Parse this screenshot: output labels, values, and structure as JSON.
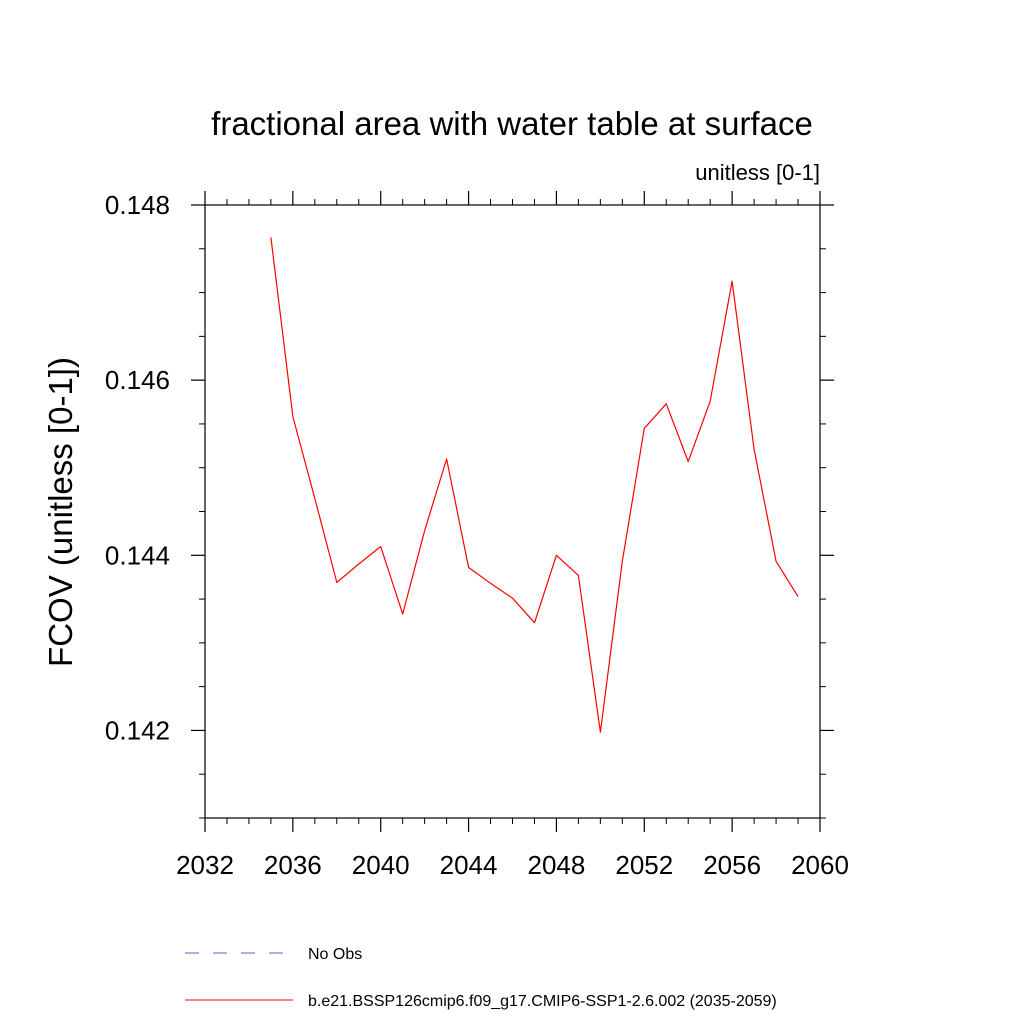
{
  "chart_data": {
    "type": "line",
    "title": "fractional area with water table at surface",
    "units_label": "unitless [0-1]",
    "ylabel": "FCOV  (unitless [0-1])",
    "xlabel": "",
    "xlim": [
      2032,
      2060
    ],
    "ylim": [
      0.141,
      0.148
    ],
    "x_ticks": [
      2032,
      2036,
      2040,
      2044,
      2048,
      2052,
      2056,
      2060
    ],
    "x_tick_labels": [
      "2032",
      "2036",
      "2040",
      "2044",
      "2048",
      "2052",
      "2056",
      "2060"
    ],
    "y_ticks": [
      0.142,
      0.144,
      0.146,
      0.148
    ],
    "y_tick_labels": [
      "0.142",
      "0.144",
      "0.146",
      "0.148"
    ],
    "y_minor_step": 0.0005,
    "x_minor_step": 1,
    "grid": false,
    "legend_position": "bottom",
    "series": [
      {
        "name": "b.e21.BSSP126cmip6.f09_g17.CMIP6-SSP1-2.6.002 (2035-2059)",
        "color": "#ff0000",
        "style": "solid",
        "x": [
          2035,
          2036,
          2037,
          2038,
          2039,
          2040,
          2041,
          2042,
          2043,
          2044,
          2045,
          2046,
          2047,
          2048,
          2049,
          2050,
          2051,
          2052,
          2053,
          2054,
          2055,
          2056,
          2057,
          2058,
          2059
        ],
        "y": [
          0.14763,
          0.14558,
          0.14465,
          0.14369,
          0.1439,
          0.1441,
          0.14333,
          0.14428,
          0.1451,
          0.14386,
          0.14368,
          0.14351,
          0.14323,
          0.144,
          0.14377,
          0.14198,
          0.14393,
          0.14545,
          0.14573,
          0.14507,
          0.14576,
          0.14713,
          0.14521,
          0.14393,
          0.14353
        ]
      }
    ],
    "legend": [
      {
        "label": "No Obs",
        "color": "#6a5acd",
        "style": "dashed"
      },
      {
        "label": "b.e21.BSSP126cmip6.f09_g17.CMIP6-SSP1-2.6.002 (2035-2059)",
        "color": "#ff0000",
        "style": "solid"
      }
    ]
  }
}
